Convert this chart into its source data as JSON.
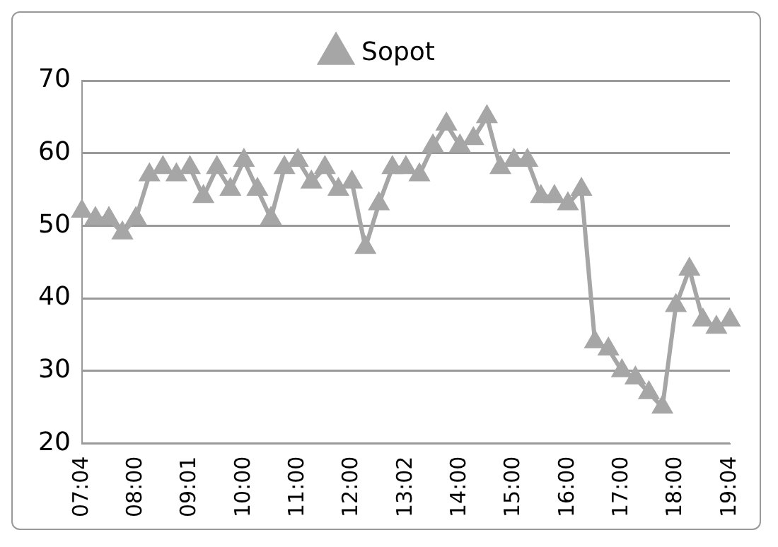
{
  "chart_data": {
    "type": "line",
    "categories": [
      "07:04",
      null,
      null,
      null,
      "08:00",
      null,
      null,
      null,
      "09:01",
      null,
      null,
      null,
      "10:00",
      null,
      null,
      null,
      "11:00",
      null,
      null,
      null,
      "12:00",
      null,
      null,
      null,
      "13:02",
      null,
      null,
      null,
      "14:00",
      null,
      null,
      null,
      "15:00",
      null,
      null,
      null,
      "16:00",
      null,
      null,
      null,
      "17:00",
      null,
      null,
      null,
      "18:00",
      null,
      null,
      null,
      "19:04"
    ],
    "series": [
      {
        "name": "Sopot",
        "color": "#a6a6a6",
        "values": [
          52,
          51,
          51,
          49,
          51,
          57,
          58,
          57,
          58,
          54,
          58,
          55,
          59,
          55,
          51,
          58,
          59,
          56,
          58,
          55,
          56,
          47,
          53,
          58,
          58,
          57,
          61,
          64,
          61,
          62,
          65,
          58,
          59,
          59,
          54,
          54,
          53,
          55,
          34,
          33,
          30,
          29,
          27,
          25,
          39,
          44,
          37,
          36,
          37
        ]
      }
    ],
    "ylim": [
      20,
      70
    ],
    "yticks": [
      20,
      30,
      40,
      50,
      60,
      70
    ],
    "grid": "y",
    "legend": "top",
    "marker": "triangle",
    "line_style": "solid"
  }
}
